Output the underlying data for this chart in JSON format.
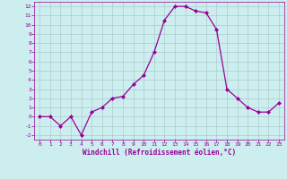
{
  "x": [
    0,
    1,
    2,
    3,
    4,
    5,
    6,
    7,
    8,
    9,
    10,
    11,
    12,
    13,
    14,
    15,
    16,
    17,
    18,
    19,
    20,
    21,
    22,
    23
  ],
  "y": [
    0,
    0,
    -1,
    0,
    -2,
    0.5,
    1,
    2,
    2.2,
    3.5,
    4.5,
    7,
    10.5,
    12,
    12,
    11.5,
    11.3,
    9.5,
    3,
    2,
    1,
    0.5,
    0.5,
    1.5
  ],
  "line_color": "#990099",
  "marker": "D",
  "marker_size": 2,
  "bg_color": "#cceeee",
  "grid_color": "#aacccc",
  "xlabel": "Windchill (Refroidissement éolien,°C)",
  "xlabel_color": "#990099",
  "tick_color": "#990099",
  "xlim": [
    -0.5,
    23.5
  ],
  "ylim": [
    -2.5,
    12.5
  ],
  "yticks": [
    -2,
    -1,
    0,
    1,
    2,
    3,
    4,
    5,
    6,
    7,
    8,
    9,
    10,
    11,
    12
  ],
  "xticks": [
    0,
    1,
    2,
    3,
    4,
    5,
    6,
    7,
    8,
    9,
    10,
    11,
    12,
    13,
    14,
    15,
    16,
    17,
    18,
    19,
    20,
    21,
    22,
    23
  ]
}
